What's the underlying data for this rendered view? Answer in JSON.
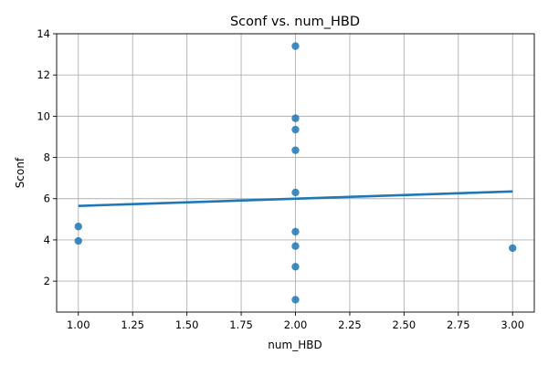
{
  "chart_data": {
    "type": "scatter",
    "title": "Sconf vs. num_HBD",
    "xlabel": "num_HBD",
    "ylabel": "Sconf",
    "xlim": [
      0.9,
      3.1
    ],
    "ylim": [
      0.5,
      14.0
    ],
    "xticks": [
      1.0,
      1.25,
      1.5,
      1.75,
      2.0,
      2.25,
      2.5,
      2.75,
      3.0
    ],
    "xtick_labels": [
      "1.00",
      "1.25",
      "1.50",
      "1.75",
      "2.00",
      "2.25",
      "2.50",
      "2.75",
      "3.00"
    ],
    "yticks": [
      2,
      4,
      6,
      8,
      10,
      12,
      14
    ],
    "ytick_labels": [
      "2",
      "4",
      "6",
      "8",
      "10",
      "12",
      "14"
    ],
    "grid": true,
    "series": [
      {
        "kind": "scatter",
        "color": "#1f77b4",
        "points": [
          {
            "x": 1.0,
            "y": 4.65
          },
          {
            "x": 1.0,
            "y": 3.95
          },
          {
            "x": 2.0,
            "y": 13.4
          },
          {
            "x": 2.0,
            "y": 9.9
          },
          {
            "x": 2.0,
            "y": 9.35
          },
          {
            "x": 2.0,
            "y": 8.35
          },
          {
            "x": 2.0,
            "y": 6.3
          },
          {
            "x": 2.0,
            "y": 4.4
          },
          {
            "x": 2.0,
            "y": 3.7
          },
          {
            "x": 2.0,
            "y": 2.7
          },
          {
            "x": 2.0,
            "y": 1.1
          },
          {
            "x": 3.0,
            "y": 3.6
          }
        ]
      },
      {
        "kind": "line",
        "color": "#1f77b4",
        "points": [
          {
            "x": 1.0,
            "y": 5.65
          },
          {
            "x": 3.0,
            "y": 6.35
          }
        ]
      }
    ]
  }
}
